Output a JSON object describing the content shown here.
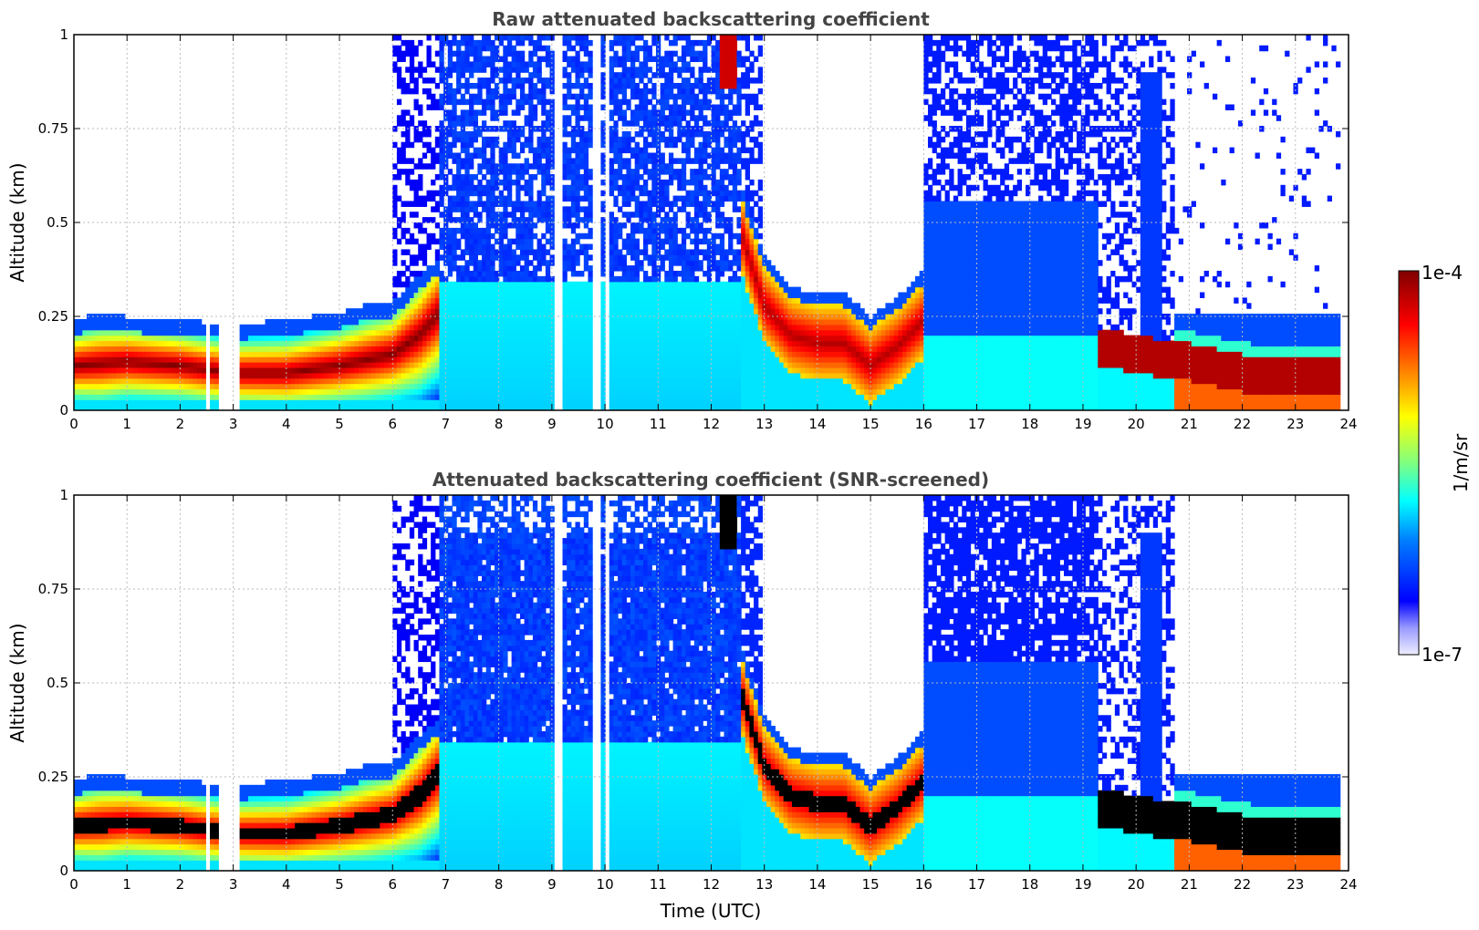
{
  "chart_data": [
    {
      "type": "heatmap",
      "title": "Raw attenuated backscattering coefficient",
      "xlabel": "",
      "ylabel": "Altitude (km)",
      "xlim": [
        0,
        24
      ],
      "ylim": [
        0,
        1
      ],
      "xticks": [
        "0",
        "1",
        "2",
        "3",
        "4",
        "5",
        "6",
        "7",
        "8",
        "9",
        "10",
        "11",
        "12",
        "13",
        "14",
        "15",
        "16",
        "17",
        "18",
        "19",
        "20",
        "21",
        "22",
        "23",
        "24"
      ],
      "yticks": [
        "0",
        "0.25",
        "0.5",
        "0.75",
        "1"
      ],
      "grid": true,
      "colorscale": "jet, log",
      "data_end_hour": 23.8,
      "layers": {
        "boundary_layer_top_km": [
          [
            0,
            0.2
          ],
          [
            0.5,
            0.22
          ],
          [
            1,
            0.21
          ],
          [
            2,
            0.2
          ],
          [
            3,
            0.19
          ],
          [
            4,
            0.2
          ],
          [
            5,
            0.22
          ],
          [
            5.5,
            0.24
          ],
          [
            6,
            0.25
          ],
          [
            6.5,
            0.32
          ],
          [
            7,
            0.38
          ]
        ],
        "aerosol_peak_km": [
          [
            0,
            0.12
          ],
          [
            1,
            0.13
          ],
          [
            2,
            0.12
          ],
          [
            3,
            0.1
          ],
          [
            4,
            0.1
          ],
          [
            5,
            0.12
          ],
          [
            6,
            0.15
          ],
          [
            6.5,
            0.2
          ],
          [
            7,
            0.28
          ]
        ],
        "evening_layer_km": [
          [
            12.5,
            0.5
          ],
          [
            13,
            0.28
          ],
          [
            13.5,
            0.2
          ],
          [
            14,
            0.18
          ],
          [
            14.5,
            0.18
          ],
          [
            15,
            0.12
          ],
          [
            15.5,
            0.17
          ],
          [
            16,
            0.24
          ]
        ],
        "night_layer_km": [
          [
            19.3,
            0.17
          ],
          [
            20,
            0.15
          ],
          [
            20.5,
            0.14
          ],
          [
            21,
            0.13
          ],
          [
            22,
            0.1
          ],
          [
            23,
            0.09
          ],
          [
            23.8,
            0.09
          ]
        ]
      }
    },
    {
      "type": "heatmap",
      "title": "Attenuated backscattering coefficient (SNR-screened)",
      "xlabel": "Time (UTC)",
      "ylabel": "Altitude (km)",
      "xlim": [
        0,
        24
      ],
      "ylim": [
        0,
        1
      ],
      "xticks": [
        "0",
        "1",
        "2",
        "3",
        "4",
        "5",
        "6",
        "7",
        "8",
        "9",
        "10",
        "11",
        "12",
        "13",
        "14",
        "15",
        "16",
        "17",
        "18",
        "19",
        "20",
        "21",
        "22",
        "23",
        "24"
      ],
      "yticks": [
        "0",
        "0.25",
        "0.5",
        "0.75",
        "1"
      ],
      "grid": true,
      "colorscale": "jet, log, saturated values black",
      "data_end_hour": 23.8
    }
  ],
  "colorbar": {
    "max_label": "1e-4",
    "min_label": "1e-7",
    "label": "1/m/sr",
    "colors": [
      "#7f0000",
      "#b30000",
      "#e60000",
      "#ff3300",
      "#ff6600",
      "#ff9900",
      "#ffcc00",
      "#ffff00",
      "#ccff33",
      "#99ff66",
      "#66ff99",
      "#33ffcc",
      "#00ffff",
      "#00ccff",
      "#0099ff",
      "#0066ff",
      "#0033ff",
      "#0000ff",
      "#3333ff",
      "#6666ff",
      "#9999ff",
      "#ccccff",
      "#eeeeff"
    ]
  }
}
